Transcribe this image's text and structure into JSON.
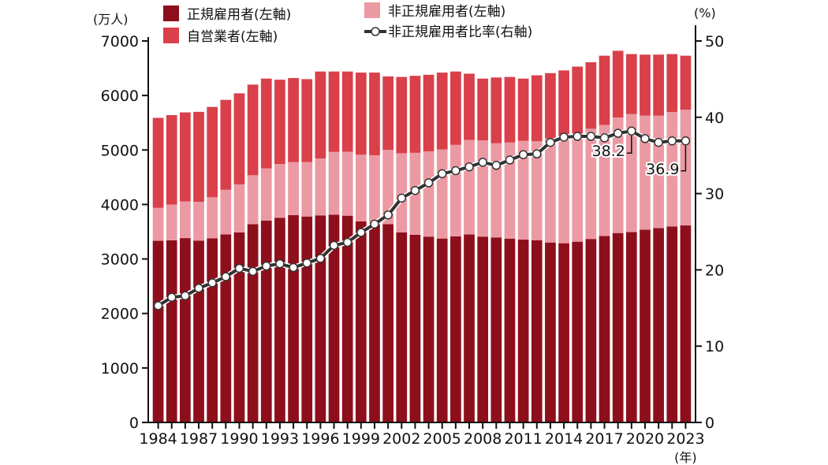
{
  "chart_data": {
    "type": "bar",
    "stacked": true,
    "categories": [
      1984,
      1985,
      1986,
      1987,
      1988,
      1989,
      1990,
      1991,
      1992,
      1993,
      1994,
      1995,
      1996,
      1997,
      1998,
      1999,
      2000,
      2001,
      2002,
      2003,
      2004,
      2005,
      2006,
      2007,
      2008,
      2009,
      2010,
      2011,
      2012,
      2013,
      2014,
      2015,
      2016,
      2017,
      2018,
      2019,
      2020,
      2021,
      2022,
      2023
    ],
    "series": [
      {
        "name": "正規雇用者(左軸)",
        "axis": "left",
        "color": "#8e0f1c",
        "values": [
          3333,
          3343,
          3383,
          3337,
          3377,
          3452,
          3488,
          3639,
          3705,
          3756,
          3805,
          3779,
          3800,
          3812,
          3794,
          3688,
          3630,
          3640,
          3489,
          3444,
          3410,
          3375,
          3415,
          3449,
          3410,
          3395,
          3374,
          3355,
          3345,
          3302,
          3288,
          3317,
          3367,
          3423,
          3476,
          3494,
          3539,
          3565,
          3597,
          3615
        ]
      },
      {
        "name": "非正規雇用者(左軸)",
        "axis": "left",
        "color": "#eb9aa3",
        "values": [
          604,
          655,
          673,
          711,
          755,
          817,
          881,
          897,
          958,
          986,
          971,
          1001,
          1043,
          1152,
          1173,
          1225,
          1273,
          1360,
          1451,
          1504,
          1564,
          1634,
          1678,
          1735,
          1765,
          1727,
          1763,
          1812,
          1816,
          1910,
          1967,
          1986,
          2023,
          2036,
          2120,
          2165,
          2090,
          2064,
          2101,
          2124
        ]
      },
      {
        "name": "自営業者(左軸)",
        "axis": "left",
        "color": "#d9404a",
        "values": [
          1653,
          1642,
          1634,
          1652,
          1658,
          1651,
          1671,
          1664,
          1647,
          1548,
          1544,
          1520,
          1597,
          1476,
          1473,
          1507,
          1517,
          1350,
          1400,
          1413,
          1406,
          1411,
          1347,
          1216,
          1135,
          1208,
          1203,
          1143,
          1209,
          1198,
          1205,
          1227,
          1220,
          1271,
          1224,
          1101,
          1121,
          1121,
          1062,
          991
        ]
      },
      {
        "name": "非正規雇用者比率(右軸)",
        "axis": "right",
        "type": "line",
        "color": "#333333",
        "values": [
          15.3,
          16.4,
          16.6,
          17.6,
          18.3,
          19.1,
          20.2,
          19.8,
          20.5,
          20.8,
          20.3,
          20.9,
          21.5,
          23.2,
          23.6,
          24.9,
          26.0,
          27.2,
          29.4,
          30.4,
          31.4,
          32.6,
          33.0,
          33.5,
          34.1,
          33.7,
          34.4,
          35.1,
          35.2,
          36.7,
          37.4,
          37.5,
          37.5,
          37.3,
          37.9,
          38.2,
          37.2,
          36.7,
          36.9,
          36.9
        ]
      }
    ],
    "x_tick_labels": [
      "1984",
      "1987",
      "1990",
      "1993",
      "1996",
      "1999",
      "2002",
      "2005",
      "2008",
      "2011",
      "2014",
      "2017",
      "2020",
      "2023"
    ],
    "y_left": {
      "unit": "(万人)",
      "ylim": [
        0,
        7000
      ],
      "ticks": [
        "0",
        "1000",
        "2000",
        "3000",
        "4000",
        "5000",
        "6000",
        "7000"
      ]
    },
    "y_right": {
      "unit": "(%)",
      "ylim": [
        0,
        50
      ],
      "ticks": [
        "0",
        "10",
        "20",
        "30",
        "40",
        "50"
      ]
    },
    "x_unit": "(年)",
    "annotations": [
      {
        "year": 2019,
        "text": "38.2"
      },
      {
        "year": 2023,
        "text": "36.9"
      }
    ],
    "legend_placement": "top-left",
    "grid": false
  }
}
